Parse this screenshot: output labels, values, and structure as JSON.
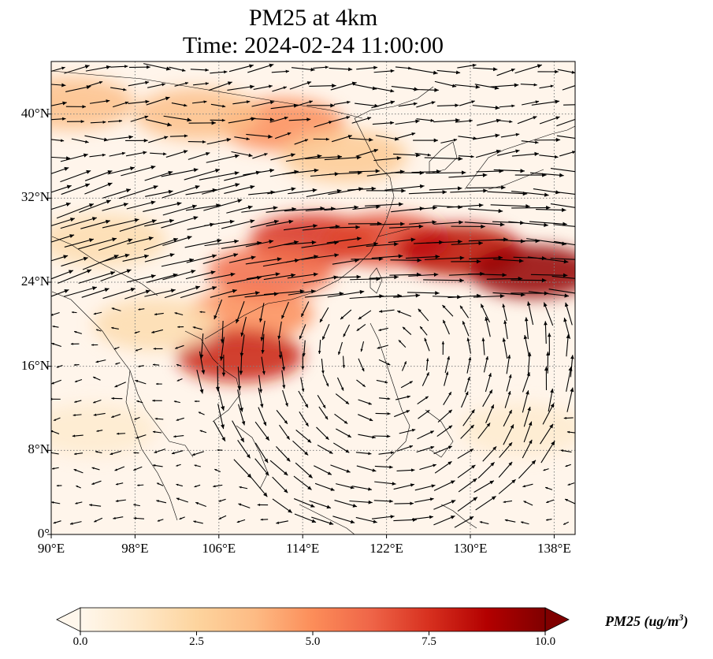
{
  "title": {
    "line1": "PM25 at 4km",
    "line2": "Time: 2024-02-24 11:00:00"
  },
  "map": {
    "extent": {
      "lon_min": 90,
      "lon_max": 140,
      "lat_min": 0,
      "lat_max": 45
    },
    "lat_ticks": [
      {
        "value": 0,
        "label": "0°"
      },
      {
        "value": 8,
        "label": "8°N"
      },
      {
        "value": 16,
        "label": "16°N"
      },
      {
        "value": 24,
        "label": "24°N"
      },
      {
        "value": 32,
        "label": "32°N"
      },
      {
        "value": 40,
        "label": "40°N"
      }
    ],
    "lon_ticks": [
      {
        "value": 90,
        "label": "90°E"
      },
      {
        "value": 98,
        "label": "98°E"
      },
      {
        "value": 106,
        "label": "106°E"
      },
      {
        "value": 114,
        "label": "114°E"
      },
      {
        "value": 122,
        "label": "122°E"
      },
      {
        "value": 130,
        "label": "130°E"
      },
      {
        "value": 138,
        "label": "138°E"
      }
    ],
    "gridlines": true,
    "gridline_color": "#808080",
    "background_color": "#fff5eb",
    "plumes": [
      {
        "lon": 109,
        "lat": 21,
        "rx": 6,
        "ry": 2.5,
        "value": 5.0
      },
      {
        "lon": 115,
        "lat": 28,
        "rx": 6,
        "ry": 2.5,
        "value": 7.5
      },
      {
        "lon": 122,
        "lat": 28,
        "rx": 6,
        "ry": 2.5,
        "value": 7.0
      },
      {
        "lon": 129,
        "lat": 27,
        "rx": 6,
        "ry": 2.5,
        "value": 8.5
      },
      {
        "lon": 136,
        "lat": 25,
        "rx": 6,
        "ry": 2.5,
        "value": 9.5
      },
      {
        "lon": 111,
        "lat": 25,
        "rx": 6,
        "ry": 2.5,
        "value": 6.0
      },
      {
        "lon": 108,
        "lat": 17,
        "rx": 6,
        "ry": 2.5,
        "value": 8.0
      },
      {
        "lon": 112,
        "lat": 39,
        "rx": 6,
        "ry": 2.5,
        "value": 5.0
      },
      {
        "lon": 104,
        "lat": 40,
        "rx": 6,
        "ry": 2.5,
        "value": 3.5
      },
      {
        "lon": 92,
        "lat": 41,
        "rx": 6,
        "ry": 2.5,
        "value": 3.5
      },
      {
        "lon": 118,
        "lat": 36,
        "rx": 6,
        "ry": 2.5,
        "value": 3.0
      },
      {
        "lon": 95,
        "lat": 28,
        "rx": 6,
        "ry": 2.5,
        "value": 2.0
      },
      {
        "lon": 100,
        "lat": 20,
        "rx": 6,
        "ry": 2.5,
        "value": 2.0
      },
      {
        "lon": 94,
        "lat": 10,
        "rx": 6,
        "ry": 2.5,
        "value": 1.0
      },
      {
        "lon": 135,
        "lat": 10,
        "rx": 6,
        "ry": 2.5,
        "value": 1.0
      }
    ],
    "vector_field": "wind"
  },
  "colorbar": {
    "vmin": 0.0,
    "vmax": 10.0,
    "ticks": [
      "0.0",
      "2.5",
      "5.0",
      "7.5",
      "10.0"
    ],
    "colormap": "OrRd",
    "label": "PM25 (ug/m",
    "label_sup": "3",
    "label_end": ")",
    "extend": "both"
  }
}
